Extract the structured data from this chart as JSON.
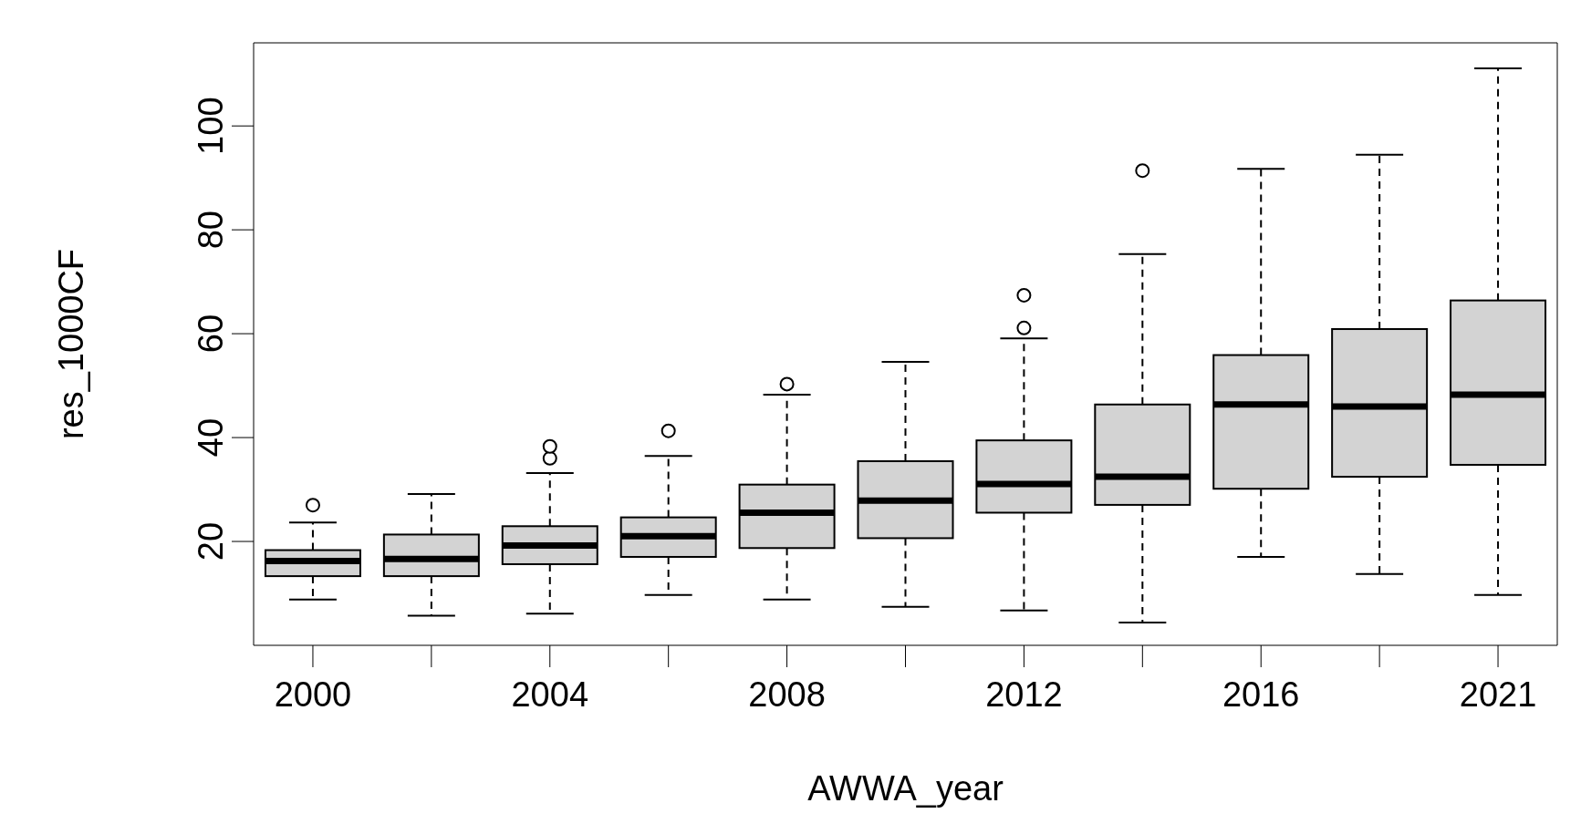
{
  "chart_data": {
    "type": "box",
    "xlabel": "AWWA_year",
    "ylabel": "res_1000CF",
    "color": "#d3d3d3",
    "categories": [
      "2000",
      null,
      "2004",
      null,
      "2008",
      null,
      "2012",
      null,
      "2016",
      null,
      "2021"
    ],
    "ylim": [
      0,
      116
    ],
    "yticks": [
      20,
      40,
      60,
      80,
      100
    ],
    "grid": false,
    "boxes": [
      {
        "low": 8.8,
        "q1": 13.3,
        "median": 16.2,
        "q3": 18.3,
        "high": 23.6,
        "outliers": [
          27.0
        ]
      },
      {
        "low": 5.7,
        "q1": 13.3,
        "median": 16.6,
        "q3": 21.3,
        "high": 29.1
      },
      {
        "low": 6.1,
        "q1": 15.6,
        "median": 19.2,
        "q3": 22.9,
        "high": 33.1,
        "outliers": [
          36.0,
          38.3
        ]
      },
      {
        "low": 9.7,
        "q1": 17.0,
        "median": 21.0,
        "q3": 24.6,
        "high": 36.4,
        "outliers": [
          41.3
        ]
      },
      {
        "low": 8.8,
        "q1": 18.7,
        "median": 25.5,
        "q3": 30.9,
        "high": 48.2,
        "outliers": [
          50.3
        ]
      },
      {
        "low": 7.4,
        "q1": 20.6,
        "median": 27.8,
        "q3": 35.4,
        "high": 54.5
      },
      {
        "low": 6.7,
        "q1": 25.5,
        "median": 31.0,
        "q3": 39.4,
        "high": 59.0,
        "outliers": [
          61.1,
          67.4
        ]
      },
      {
        "low": 4.4,
        "q1": 27.0,
        "median": 32.4,
        "q3": 46.3,
        "high": 75.2,
        "outliers": [
          91.4
        ]
      },
      {
        "low": 17.0,
        "q1": 30.1,
        "median": 46.3,
        "q3": 55.8,
        "high": 91.6
      },
      {
        "low": 13.7,
        "q1": 32.4,
        "median": 45.9,
        "q3": 60.8,
        "high": 94.3
      },
      {
        "low": 9.7,
        "q1": 34.7,
        "median": 48.2,
        "q3": 66.3,
        "high": 110.9
      }
    ]
  }
}
